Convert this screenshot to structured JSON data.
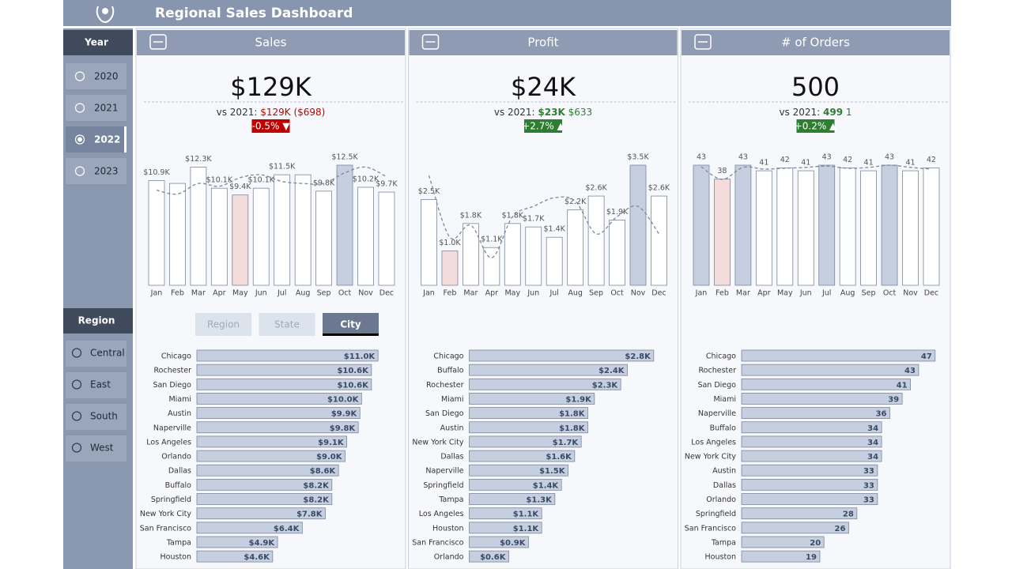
{
  "header": {
    "title": "Regional Sales Dashboard"
  },
  "year_slicer": {
    "title": "Year",
    "options": [
      "2020",
      "2021",
      "2022",
      "2023"
    ],
    "selected_index": 2
  },
  "region_slicer": {
    "title": "Region",
    "options": [
      "Central",
      "East",
      "South",
      "West"
    ]
  },
  "tabs": {
    "options": [
      "Region",
      "State",
      "City"
    ],
    "selected_index": 2
  },
  "panels": [
    {
      "title": "Sales",
      "kpi": "$129K",
      "compare_label": "vs 2021:",
      "compare_value": "$129K",
      "compare_diff": "($698)",
      "change": "-0.5% ▼",
      "delta_color": "#c00000",
      "value_bold": false
    },
    {
      "title": "Profit",
      "kpi": "$24K",
      "compare_label": "vs 2021:",
      "compare_value": "$23K",
      "compare_diff": "$633",
      "change": "+2.7% ▲",
      "delta_color": "#2e7d32",
      "value_bold": true
    },
    {
      "title": "# of Orders",
      "kpi": "500",
      "compare_label": "vs 2021:",
      "compare_value": "499",
      "compare_diff": "1",
      "change": "+0.2% ▲",
      "delta_color": "#2e7d32",
      "value_bold": true
    }
  ],
  "chart_data": [
    {
      "type": "bar",
      "categories": [
        "Jan",
        "Feb",
        "Mar",
        "Apr",
        "May",
        "Jun",
        "Jul",
        "Aug",
        "Sep",
        "Oct",
        "Nov",
        "Dec"
      ],
      "values": [
        10.9,
        10.6,
        12.3,
        10.1,
        9.4,
        10.1,
        11.5,
        11.5,
        9.8,
        12.5,
        10.2,
        9.7
      ],
      "value_labels": [
        "$10.9K",
        null,
        "$12.3K",
        "$10.1K",
        "$9.4K",
        "$10.1K",
        "$11.5K",
        null,
        "$9.8K",
        "$12.5K",
        "$10.2K",
        "$9.7K"
      ],
      "prior_values": [
        9.9,
        9.5,
        10.6,
        10.3,
        11.2,
        11.5,
        10.8,
        10.6,
        10.6,
        11.7,
        12.3,
        11.3
      ],
      "ylim": [
        0,
        12.5
      ],
      "color": "#ffffff",
      "max_color": "#c5cfe0",
      "min_color": "#f5dcdc"
    },
    {
      "type": "bar",
      "categories": [
        "Jan",
        "Feb",
        "Mar",
        "Apr",
        "May",
        "Jun",
        "Jul",
        "Aug",
        "Sep",
        "Oct",
        "Nov",
        "Dec"
      ],
      "values": [
        2.5,
        1.0,
        1.8,
        1.1,
        1.8,
        1.7,
        1.4,
        2.2,
        2.6,
        1.9,
        3.5,
        2.6
      ],
      "value_labels": [
        "$2.5K",
        "$1.0K",
        "$1.8K",
        "$1.1K",
        "$1.8K",
        "$1.7K",
        "$1.4K",
        "$2.2K",
        "$2.6K",
        "$1.9K",
        "$3.5K",
        "$2.6K"
      ],
      "prior_values": [
        3.2,
        1.4,
        1.75,
        0.8,
        2.0,
        2.3,
        2.55,
        2.45,
        1.5,
        2.0,
        2.3,
        1.5
      ],
      "ylim": [
        0,
        3.5
      ],
      "color": "#ffffff",
      "max_color": "#c5cfe0",
      "min_color": "#f5dcdc"
    },
    {
      "type": "bar",
      "categories": [
        "Jan",
        "Feb",
        "Mar",
        "Apr",
        "May",
        "Jun",
        "Jul",
        "Aug",
        "Sep",
        "Oct",
        "Nov",
        "Dec"
      ],
      "values": [
        43,
        38,
        43,
        41,
        42,
        41,
        43,
        42,
        41,
        43,
        41,
        42
      ],
      "prior_values": [
        42.4,
        37.9,
        42.2,
        41.6,
        41.9,
        42.2,
        42.7,
        41.9,
        42.2,
        43,
        42.2,
        41.6
      ],
      "ylim": [
        0,
        43
      ],
      "color": "#ffffff",
      "max_color": "#c5cfe0",
      "min_color": "#f5dcdc"
    },
    {
      "type": "hbar",
      "categories": [
        "Chicago",
        "Rochester",
        "San Diego",
        "Miami",
        "Austin",
        "Naperville",
        "Los Angeles",
        "Orlando",
        "Dallas",
        "Buffalo",
        "Springfield",
        "New York City",
        "San Francisco",
        "Tampa",
        "Houston"
      ],
      "values": [
        11.0,
        10.6,
        10.6,
        10.0,
        9.9,
        9.8,
        9.1,
        9.0,
        8.6,
        8.2,
        8.2,
        7.8,
        6.4,
        4.9,
        4.6
      ],
      "value_labels": [
        "$11.0K",
        "$10.6K",
        "$10.6K",
        "$10.0K",
        "$9.9K",
        "$9.8K",
        "$9.1K",
        "$9.0K",
        "$8.6K",
        "$8.2K",
        "$8.2K",
        "$7.8K",
        "$6.4K",
        "$4.9K",
        "$4.6K"
      ],
      "xlim": [
        0,
        12
      ],
      "color": "#c5cfe0"
    },
    {
      "type": "hbar",
      "categories": [
        "Chicago",
        "Buffalo",
        "Rochester",
        "Miami",
        "San Diego",
        "Austin",
        "New York City",
        "Dallas",
        "Naperville",
        "Springfield",
        "Tampa",
        "Los Angeles",
        "Houston",
        "San Francisco",
        "Orlando"
      ],
      "values": [
        2.8,
        2.4,
        2.3,
        1.9,
        1.8,
        1.8,
        1.7,
        1.6,
        1.5,
        1.4,
        1.3,
        1.1,
        1.1,
        0.9,
        0.6
      ],
      "value_labels": [
        "$2.8K",
        "$2.4K",
        "$2.3K",
        "$1.9K",
        "$1.8K",
        "$1.8K",
        "$1.7K",
        "$1.6K",
        "$1.5K",
        "$1.4K",
        "$1.3K",
        "$1.1K",
        "$1.1K",
        "$0.9K",
        "$0.6K"
      ],
      "xlim": [
        0,
        3
      ],
      "color": "#c5cfe0"
    },
    {
      "type": "hbar",
      "categories": [
        "Chicago",
        "Rochester",
        "San Diego",
        "Miami",
        "Naperville",
        "Buffalo",
        "Los Angeles",
        "New York City",
        "Austin",
        "Dallas",
        "Orlando",
        "Springfield",
        "San Francisco",
        "Tampa",
        "Houston"
      ],
      "values": [
        47,
        43,
        41,
        39,
        36,
        34,
        34,
        34,
        33,
        33,
        33,
        28,
        26,
        20,
        19
      ],
      "xlim": [
        0,
        48
      ],
      "color": "#c5cfe0"
    }
  ]
}
